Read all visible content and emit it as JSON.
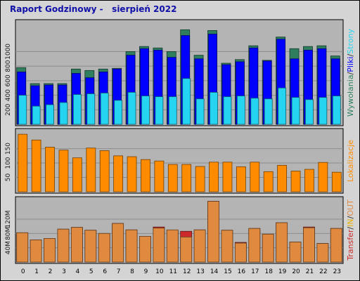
{
  "title": "Raport Godzinowy -   sierpień 2022",
  "colors": {
    "visits": "#2f7f5f",
    "pages": "#0000ff",
    "files": "#24d4f0",
    "sites": "#ff8c00",
    "in": "#e8b000",
    "out": "#e08a40",
    "transfer": "#cc2a2a"
  },
  "chart_data": [
    {
      "type": "bar",
      "name": "hits-pages-files-visits",
      "categories": [
        "0",
        "1",
        "2",
        "3",
        "4",
        "5",
        "6",
        "7",
        "8",
        "9",
        "10",
        "11",
        "12",
        "13",
        "14",
        "15",
        "16",
        "17",
        "18",
        "19",
        "20",
        "21",
        "22",
        "23"
      ],
      "yticks": [
        "200",
        "400",
        "600",
        "800",
        "1000"
      ],
      "ylim": [
        0,
        1400
      ],
      "right_label": {
        "parts": [
          "Wywołania",
          "/",
          "Pliki",
          "/",
          "Strony"
        ],
        "colors": [
          "#2f7f5f",
          "#303030",
          "#0000ff",
          "#303030",
          "#24d4f0"
        ]
      },
      "series": [
        {
          "key": "visits",
          "values": [
            780,
            560,
            560,
            560,
            760,
            740,
            760,
            770,
            1000,
            1070,
            1050,
            1000,
            1300,
            950,
            1290,
            840,
            890,
            1080,
            880,
            1200,
            1040,
            1070,
            1080,
            940
          ]
        },
        {
          "key": "pages",
          "values": [
            720,
            530,
            540,
            540,
            700,
            640,
            720,
            760,
            950,
            1040,
            1020,
            920,
            1220,
            900,
            1240,
            820,
            860,
            1050,
            870,
            1170,
            900,
            1020,
            1040,
            900
          ]
        },
        {
          "key": "files",
          "values": [
            400,
            250,
            270,
            300,
            410,
            420,
            430,
            330,
            440,
            390,
            380,
            380,
            630,
            350,
            440,
            380,
            390,
            360,
            350,
            500,
            370,
            340,
            370,
            390
          ]
        }
      ]
    },
    {
      "type": "bar",
      "name": "sites",
      "categories": [
        "0",
        "1",
        "2",
        "3",
        "4",
        "5",
        "6",
        "7",
        "8",
        "9",
        "10",
        "11",
        "12",
        "13",
        "14",
        "15",
        "16",
        "17",
        "18",
        "19",
        "20",
        "21",
        "22",
        "23"
      ],
      "yticks": [
        "50",
        "100",
        "150"
      ],
      "ylim": [
        0,
        210
      ],
      "right_label": {
        "parts": [
          "Lokalizacje"
        ],
        "colors": [
          "#ff8c00"
        ]
      },
      "series": [
        {
          "key": "sites",
          "values": [
            200,
            180,
            155,
            145,
            118,
            152,
            143,
            125,
            122,
            112,
            107,
            95,
            95,
            88,
            103,
            103,
            87,
            103,
            70,
            92,
            72,
            78,
            102,
            68
          ]
        }
      ]
    },
    {
      "type": "bar",
      "name": "transfer",
      "categories": [
        "0",
        "1",
        "2",
        "3",
        "4",
        "5",
        "6",
        "7",
        "8",
        "9",
        "10",
        "11",
        "12",
        "13",
        "14",
        "15",
        "16",
        "17",
        "18",
        "19",
        "20",
        "21",
        "22",
        "23"
      ],
      "yticks": [
        "40M",
        "80M",
        "120M"
      ],
      "ylim": [
        0,
        175
      ],
      "right_label": {
        "parts": [
          "Transfer",
          "/",
          "IN",
          "/",
          "OUT"
        ],
        "colors": [
          "#cc2a2a",
          "#303030",
          "#e8b000",
          "#303030",
          "#e08a40"
        ]
      },
      "series": [
        {
          "key": "transfer",
          "values": [
            82,
            62,
            66,
            92,
            97,
            89,
            80,
            108,
            90,
            72,
            98,
            88,
            86,
            90,
            170,
            89,
            55,
            94,
            78,
            110,
            56,
            98,
            52,
            94
          ]
        },
        {
          "key": "out",
          "values": [
            82,
            62,
            66,
            92,
            97,
            89,
            80,
            108,
            90,
            72,
            95,
            90,
            70,
            90,
            170,
            89,
            53,
            94,
            78,
            110,
            56,
            96,
            52,
            94
          ]
        }
      ]
    }
  ]
}
